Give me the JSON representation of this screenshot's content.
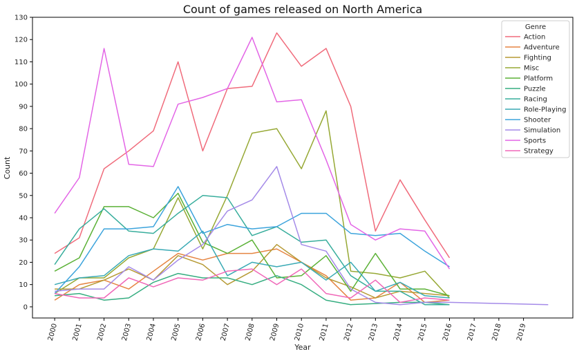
{
  "chart_data": {
    "type": "line",
    "title": "Count of games released on North America",
    "xlabel": "Year",
    "ylabel": "Count",
    "x_ticks": [
      "2000",
      "2001",
      "2002",
      "2003",
      "2004",
      "2005",
      "2006",
      "2007",
      "2008",
      "2009",
      "2010",
      "2011",
      "2012",
      "2013",
      "2014",
      "2015",
      "2016",
      "2017",
      "2018",
      "2019"
    ],
    "x_range": [
      1999.1,
      2021.0
    ],
    "ylim": [
      -5,
      130
    ],
    "y_ticks": [
      0,
      10,
      20,
      30,
      40,
      50,
      60,
      70,
      80,
      90,
      100,
      110,
      120,
      130
    ],
    "grid": false,
    "legend": {
      "title": "Genre",
      "placement": "top-right"
    },
    "series": [
      {
        "name": "Action",
        "color": "#f06b7b",
        "x": [
          2000,
          2001,
          2002,
          2003,
          2004,
          2005,
          2006,
          2007,
          2008,
          2009,
          2010,
          2011,
          2012,
          2013,
          2014,
          2015,
          2016
        ],
        "values": [
          24,
          31,
          62,
          70,
          79,
          110,
          70,
          98,
          99,
          123,
          108,
          116,
          90,
          34,
          57,
          39,
          22
        ]
      },
      {
        "name": "Adventure",
        "color": "#e58440",
        "x": [
          2000,
          2001,
          2002,
          2003,
          2004,
          2005,
          2006,
          2007,
          2008,
          2009,
          2010,
          2011,
          2012,
          2013,
          2014,
          2015,
          2016
        ],
        "values": [
          3,
          10,
          12,
          8,
          16,
          24,
          21,
          24,
          24,
          26,
          20,
          14,
          3,
          4,
          11,
          2,
          3
        ]
      },
      {
        "name": "Fighting",
        "color": "#b69a34",
        "x": [
          2000,
          2001,
          2002,
          2003,
          2004,
          2005,
          2006,
          2007,
          2008,
          2009,
          2010,
          2011,
          2012,
          2013,
          2014,
          2015,
          2016
        ],
        "values": [
          8,
          8,
          12,
          17,
          12,
          23,
          19,
          10,
          16,
          28,
          20,
          13,
          9,
          4,
          7,
          6,
          5
        ]
      },
      {
        "name": "Misc",
        "color": "#96a834",
        "x": [
          2000,
          2001,
          2002,
          2003,
          2004,
          2005,
          2006,
          2007,
          2008,
          2009,
          2010,
          2011,
          2012,
          2013,
          2014,
          2015,
          2016
        ],
        "values": [
          6,
          13,
          13,
          22,
          26,
          49,
          26,
          50,
          78,
          80,
          62,
          88,
          16,
          15,
          13,
          16,
          4
        ]
      },
      {
        "name": "Platform",
        "color": "#5bb136",
        "x": [
          2000,
          2001,
          2002,
          2003,
          2004,
          2005,
          2006,
          2007,
          2008,
          2009,
          2010,
          2011,
          2012,
          2013,
          2014,
          2015,
          2016
        ],
        "values": [
          16,
          22,
          45,
          45,
          40,
          51,
          29,
          24,
          30,
          13,
          14,
          23,
          7,
          24,
          8,
          8,
          5
        ]
      },
      {
        "name": "Puzzle",
        "color": "#35ad80",
        "x": [
          2000,
          2001,
          2002,
          2003,
          2004,
          2005,
          2006,
          2007,
          2008,
          2009,
          2010,
          2011,
          2012,
          2013,
          2014,
          2015,
          2016
        ],
        "values": [
          5,
          6,
          3,
          4,
          11,
          15,
          13,
          13,
          10,
          14,
          10,
          3,
          1,
          1.5,
          2,
          2,
          1
        ]
      },
      {
        "name": "Racing",
        "color": "#37ad9c",
        "x": [
          2000,
          2001,
          2002,
          2003,
          2004,
          2005,
          2006,
          2007,
          2008,
          2009,
          2010,
          2011,
          2012,
          2013,
          2014,
          2015,
          2016
        ],
        "values": [
          19,
          35,
          44,
          34,
          33,
          42,
          50,
          49,
          32,
          36,
          29,
          30,
          14,
          7,
          7,
          1,
          1
        ]
      },
      {
        "name": "Role-Playing",
        "color": "#38a9b4",
        "x": [
          2000,
          2001,
          2002,
          2003,
          2004,
          2005,
          2006,
          2007,
          2008,
          2009,
          2010,
          2011,
          2012,
          2013,
          2014,
          2015,
          2016
        ],
        "values": [
          10,
          13,
          14,
          23,
          26,
          25,
          34,
          14,
          20,
          18,
          20,
          12,
          20,
          7,
          11,
          5,
          4
        ]
      },
      {
        "name": "Shooter",
        "color": "#3ba3dc",
        "x": [
          2000,
          2001,
          2002,
          2003,
          2004,
          2005,
          2006,
          2007,
          2008,
          2009,
          2010,
          2011,
          2012,
          2013,
          2014,
          2015,
          2016
        ],
        "values": [
          6,
          18,
          35,
          35,
          36,
          54,
          33,
          37,
          35,
          36,
          42,
          42,
          33,
          32,
          33,
          25,
          18
        ]
      },
      {
        "name": "Simulation",
        "color": "#a48ae8",
        "x": [
          2000,
          2001,
          2002,
          2003,
          2004,
          2005,
          2006,
          2007,
          2008,
          2009,
          2010,
          2011,
          2012,
          2013,
          2014,
          2015,
          2016,
          2020
        ],
        "values": [
          7,
          8,
          8,
          18,
          12,
          21,
          28,
          43,
          48,
          63,
          28,
          25,
          8,
          2,
          1,
          2,
          2,
          1
        ]
      },
      {
        "name": "Sports",
        "color": "#e365e6",
        "x": [
          2000,
          2001,
          2002,
          2003,
          2004,
          2005,
          2006,
          2007,
          2008,
          2009,
          2010,
          2011,
          2012,
          2013,
          2014,
          2015,
          2016
        ],
        "values": [
          42,
          58,
          116,
          64,
          63,
          91,
          94,
          98,
          121,
          92,
          93,
          66,
          37,
          30,
          35,
          34,
          17
        ]
      },
      {
        "name": "Strategy",
        "color": "#f067b8",
        "x": [
          2000,
          2001,
          2002,
          2003,
          2004,
          2005,
          2006,
          2007,
          2008,
          2009,
          2010,
          2011,
          2012,
          2013,
          2014,
          2015,
          2016
        ],
        "values": [
          6,
          4,
          4,
          13,
          9,
          13,
          12,
          16,
          17,
          10,
          17,
          6,
          4,
          12,
          2,
          4,
          3
        ]
      }
    ]
  }
}
